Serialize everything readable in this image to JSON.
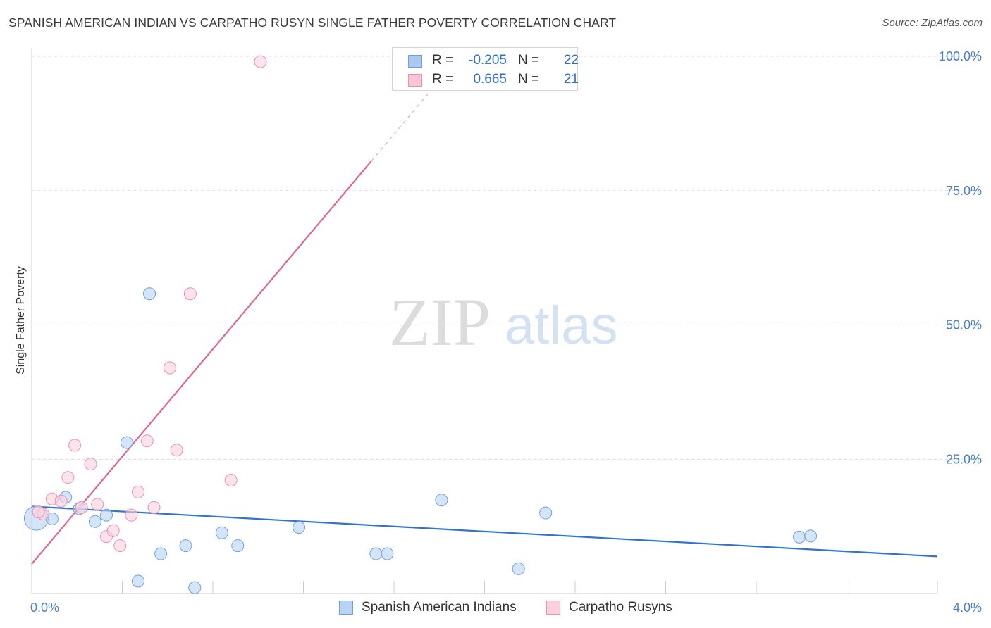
{
  "header": {
    "title": "SPANISH AMERICAN INDIAN VS CARPATHO RUSYN SINGLE FATHER POVERTY CORRELATION CHART",
    "source": "Source: ZipAtlas.com"
  },
  "watermark": {
    "zip": "ZIP",
    "atlas": "atlas"
  },
  "legend": {
    "rows": [
      {
        "r_label": "R =",
        "r_value": "-0.205",
        "n_label": "N =",
        "n_value": "22",
        "color": "#a9c8f2",
        "border": "#6f9fe0"
      },
      {
        "r_label": "R =",
        "r_value": "0.665",
        "n_label": "N =",
        "n_value": "21",
        "color": "#f9c4d4",
        "border": "#ef8fae"
      }
    ]
  },
  "bottom_legend": {
    "items": [
      {
        "label": "Spanish American Indians",
        "color": "#b9d3f5",
        "border": "#6f9fe0"
      },
      {
        "label": "Carpatho Rusyns",
        "color": "#fbd0dd",
        "border": "#ef8fae"
      }
    ]
  },
  "chart_data": {
    "type": "scatter",
    "title": "SPANISH AMERICAN INDIAN VS CARPATHO RUSYN SINGLE FATHER POVERTY CORRELATION CHART",
    "xlabel": "",
    "ylabel": "Single Father Poverty",
    "xlim": [
      0.0,
      4.0
    ],
    "ylim": [
      0,
      100
    ],
    "x_tick_labels": [
      "0.0%",
      "4.0%"
    ],
    "y_ticks": [
      25,
      50,
      75,
      100
    ],
    "y_tick_labels": [
      "25.0%",
      "50.0%",
      "75.0%",
      "100.0%"
    ],
    "grid": true,
    "legend_position": "top-center",
    "series": [
      {
        "name": "Spanish American Indians",
        "color": "#6f9fe0",
        "fill": "#b9d3f5",
        "line_color": "#2f74cf",
        "r": -0.205,
        "n": 22,
        "trend": {
          "x": [
            0.0,
            4.0
          ],
          "y": [
            16.2,
            6.9
          ]
        },
        "points": [
          {
            "x": 0.02,
            "y": 14.0,
            "big": true
          },
          {
            "x": 0.09,
            "y": 13.9
          },
          {
            "x": 0.15,
            "y": 17.9
          },
          {
            "x": 0.21,
            "y": 15.8
          },
          {
            "x": 0.28,
            "y": 13.4
          },
          {
            "x": 0.33,
            "y": 14.6
          },
          {
            "x": 0.42,
            "y": 28.1
          },
          {
            "x": 0.47,
            "y": 2.3
          },
          {
            "x": 0.52,
            "y": 55.8
          },
          {
            "x": 0.57,
            "y": 7.4
          },
          {
            "x": 0.68,
            "y": 8.9
          },
          {
            "x": 0.72,
            "y": 1.1
          },
          {
            "x": 0.84,
            "y": 11.3
          },
          {
            "x": 0.91,
            "y": 8.9
          },
          {
            "x": 1.18,
            "y": 12.3
          },
          {
            "x": 1.52,
            "y": 7.4
          },
          {
            "x": 1.57,
            "y": 7.4
          },
          {
            "x": 1.81,
            "y": 17.4
          },
          {
            "x": 2.15,
            "y": 4.6
          },
          {
            "x": 2.27,
            "y": 15.0
          },
          {
            "x": 3.39,
            "y": 10.5
          },
          {
            "x": 3.44,
            "y": 10.7
          }
        ]
      },
      {
        "name": "Carpatho Rusyns",
        "color": "#ef8fae",
        "fill": "#fbd0dd",
        "line_color": "#e0668f",
        "r": 0.665,
        "n": 21,
        "trend": {
          "x": [
            0.0,
            1.5
          ],
          "y": [
            5.5,
            80.5
          ]
        },
        "trend_dashed": {
          "x": [
            1.5,
            1.75
          ],
          "y": [
            80.5,
            93.0
          ]
        },
        "points": [
          {
            "x": 0.05,
            "y": 14.8
          },
          {
            "x": 0.09,
            "y": 17.6
          },
          {
            "x": 0.13,
            "y": 17.2
          },
          {
            "x": 0.16,
            "y": 21.6
          },
          {
            "x": 0.19,
            "y": 27.6
          },
          {
            "x": 0.22,
            "y": 16.0
          },
          {
            "x": 0.26,
            "y": 24.1
          },
          {
            "x": 0.29,
            "y": 16.6
          },
          {
            "x": 0.33,
            "y": 10.6
          },
          {
            "x": 0.36,
            "y": 11.7
          },
          {
            "x": 0.39,
            "y": 8.9
          },
          {
            "x": 0.44,
            "y": 14.6
          },
          {
            "x": 0.47,
            "y": 18.9
          },
          {
            "x": 0.51,
            "y": 28.4
          },
          {
            "x": 0.54,
            "y": 16.0
          },
          {
            "x": 0.61,
            "y": 42.0
          },
          {
            "x": 0.64,
            "y": 26.7
          },
          {
            "x": 0.7,
            "y": 55.8
          },
          {
            "x": 0.88,
            "y": 21.1
          },
          {
            "x": 1.01,
            "y": 99.0
          },
          {
            "x": 0.03,
            "y": 15.2
          }
        ]
      }
    ]
  }
}
